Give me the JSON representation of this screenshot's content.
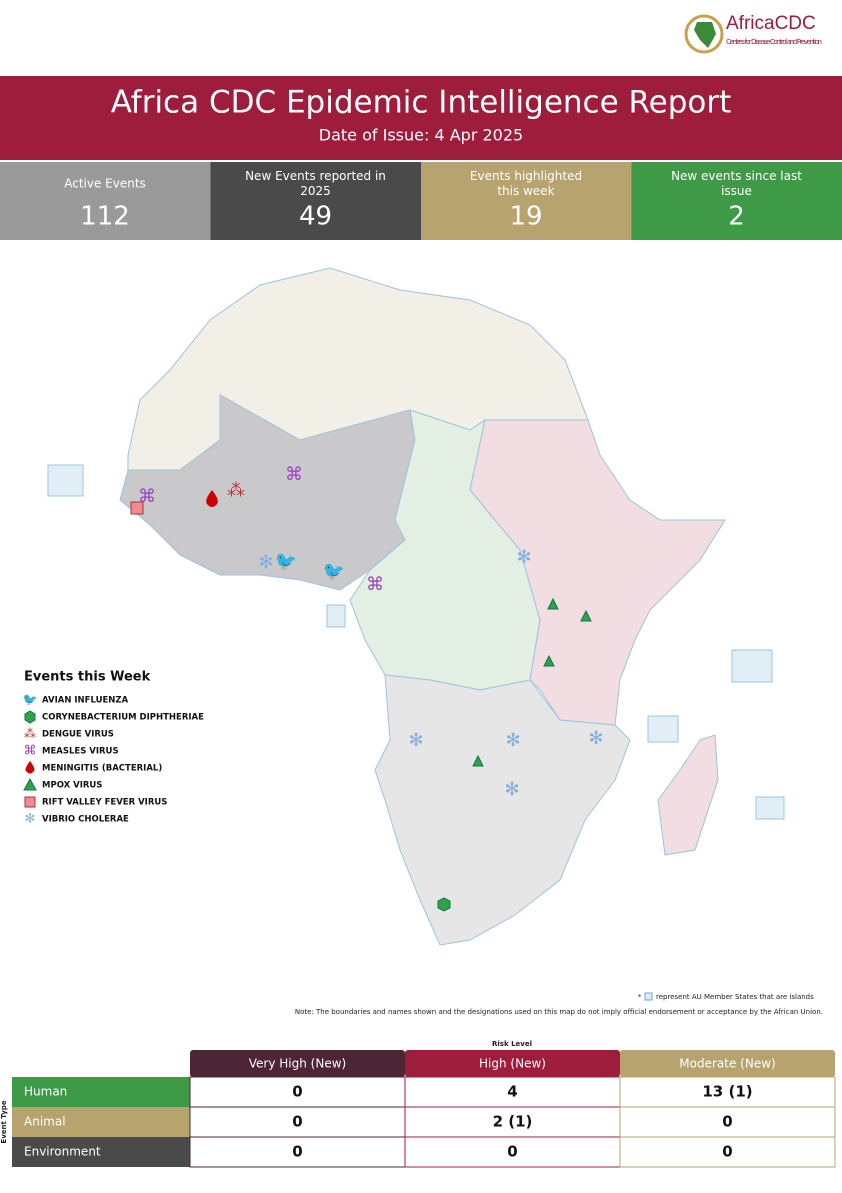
{
  "logo": {
    "name": "AfricaCDC",
    "tagline": "Centres for Disease Control and Prevention"
  },
  "header": {
    "title": "Africa CDC Epidemic Intelligence Report",
    "date": "Date of Issue: 4 Apr 2025"
  },
  "stats": [
    {
      "label": "Active Events",
      "value": 112
    },
    {
      "label": "New Events reported in 2025",
      "value": 49
    },
    {
      "label": "Events highlighted this week",
      "value": 19
    },
    {
      "label": "New events since last issue",
      "value": 2
    }
  ],
  "legend": {
    "title": "Events this Week",
    "items": [
      "AVIAN INFLUENZA",
      "CORYNEBACTERIUM DIPHTHERIAE",
      "DENGUE VIRUS",
      "MEASLES VIRUS",
      "MENINGITIS (BACTERIAL)",
      "MPOX VIRUS",
      "RIFT VALLEY FEVER VIRUS",
      "VIBRIO CHOLERAE"
    ]
  },
  "notes": {
    "asterisk": "*",
    "islands": "represent AU Member States that are islands",
    "disclaimer": "Note: The boundaries and names shown and the designations used on this map do not imply official endorsement or acceptance by the African Union."
  },
  "risk_table": {
    "title": "Risk Level",
    "axis": "Event Type",
    "columns": [
      "Very High (New)",
      "High (New)",
      "Moderate (New)"
    ],
    "rows": [
      {
        "label": "Human",
        "cells": [
          0,
          4,
          "13 (1)"
        ]
      },
      {
        "label": "Animal",
        "cells": [
          0,
          "2 (1)",
          0
        ]
      },
      {
        "label": "Environment",
        "cells": [
          0,
          0,
          0
        ]
      }
    ]
  }
}
